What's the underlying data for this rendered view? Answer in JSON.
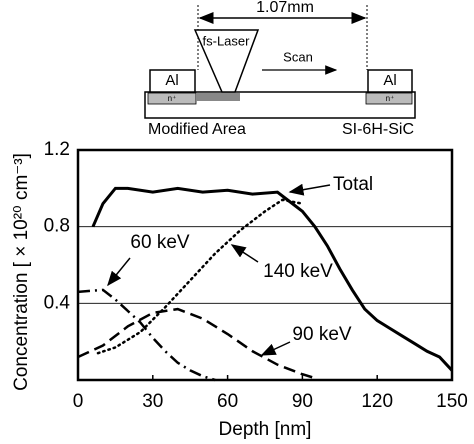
{
  "chart_data": {
    "type": "line",
    "xlabel": "Depth [nm]",
    "ylabel": "Concentration  [ × 10²⁰ cm⁻³]",
    "xlim": [
      0,
      150
    ],
    "ylim": [
      0,
      1.2
    ],
    "xticks": [
      0,
      30,
      60,
      90,
      120,
      150
    ],
    "yticks": [
      0.4,
      0.8,
      1.2
    ],
    "grid": true,
    "annotations": [
      "Total",
      "60 keV",
      "140 keV",
      "90 keV"
    ],
    "series": [
      {
        "name": "Total",
        "color": "#000000",
        "style": "solid",
        "x": [
          6,
          10,
          15,
          20,
          30,
          40,
          50,
          60,
          70,
          80,
          85,
          90,
          95,
          100,
          105,
          110,
          115,
          120,
          125,
          130,
          135,
          140,
          145,
          150
        ],
        "values": [
          0.8,
          0.92,
          1.0,
          1.0,
          0.98,
          1.0,
          0.98,
          0.99,
          0.97,
          0.98,
          0.93,
          0.88,
          0.8,
          0.7,
          0.58,
          0.47,
          0.37,
          0.31,
          0.27,
          0.23,
          0.19,
          0.15,
          0.12,
          0.05
        ]
      },
      {
        "name": "140 keV",
        "color": "#000000",
        "style": "dotted",
        "x": [
          8,
          15,
          25,
          35,
          45,
          55,
          65,
          75,
          82,
          90
        ],
        "values": [
          0.14,
          0.17,
          0.25,
          0.38,
          0.52,
          0.66,
          0.78,
          0.88,
          0.94,
          0.92
        ]
      },
      {
        "name": "90 keV",
        "color": "#000000",
        "style": "dashed",
        "x": [
          0,
          10,
          20,
          30,
          40,
          50,
          60,
          70,
          80,
          90,
          95
        ],
        "values": [
          0.12,
          0.18,
          0.28,
          0.35,
          0.37,
          0.32,
          0.24,
          0.15,
          0.08,
          0.03,
          0.01
        ]
      },
      {
        "name": "60 keV",
        "color": "#000000",
        "style": "dashdot",
        "x": [
          0,
          10,
          15,
          20,
          25,
          30,
          35,
          40,
          45,
          50,
          55
        ],
        "values": [
          0.46,
          0.47,
          0.42,
          0.36,
          0.3,
          0.22,
          0.15,
          0.09,
          0.05,
          0.02,
          0.0
        ]
      }
    ]
  },
  "schematic": {
    "length": "1.07mm",
    "laser": "fs-Laser",
    "scan": "Scan",
    "electrode_left": "Al",
    "electrode_right": "Al",
    "implant_left": "n⁺",
    "implant_right": "n⁺",
    "modified": "Modified Area",
    "substrate": "SI-6H-SiC"
  }
}
